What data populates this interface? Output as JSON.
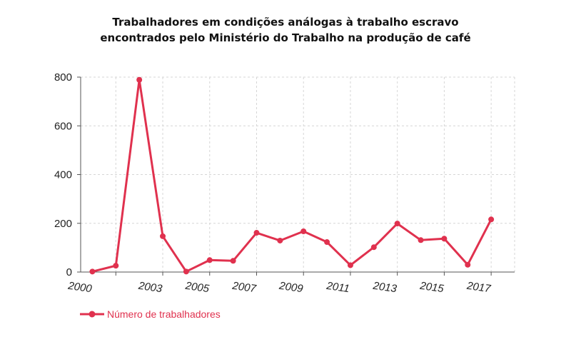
{
  "chart_data": {
    "type": "line",
    "title_lines": [
      "Trabalhadores em condições análogas à trabalho escravo",
      "encontrados pelo Ministério do Trabalho na produção de café"
    ],
    "x": [
      2000,
      2001,
      2002,
      2003,
      2004,
      2005,
      2006,
      2007,
      2008,
      2009,
      2010,
      2011,
      2012,
      2013,
      2014,
      2015,
      2016,
      2017
    ],
    "x_tick_labels": [
      "2000",
      "2003",
      "2005",
      "2007",
      "2009",
      "2011",
      "2013",
      "2015",
      "2017"
    ],
    "y_tick_labels": [
      "0",
      "200",
      "400",
      "600",
      "800"
    ],
    "ylim": [
      0,
      800
    ],
    "grid": true,
    "legend_position": "bottom-left",
    "series": [
      {
        "name": "Número de trabalhadores",
        "color": "#e0314e",
        "values": [
          2,
          26,
          789,
          147,
          2,
          49,
          46,
          161,
          129,
          167,
          123,
          28,
          102,
          199,
          131,
          137,
          30,
          216
        ]
      }
    ],
    "xlabel": "",
    "ylabel": ""
  }
}
